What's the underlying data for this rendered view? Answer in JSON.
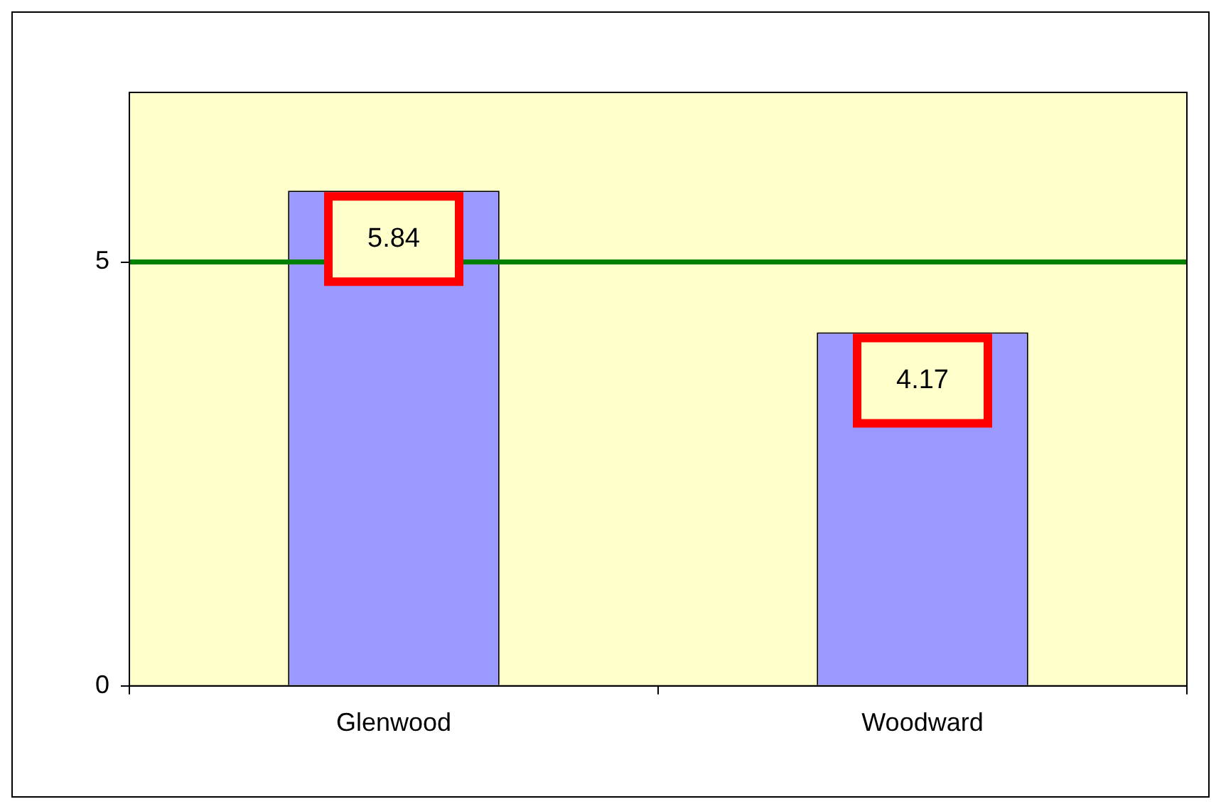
{
  "chart_data": {
    "type": "bar",
    "categories": [
      "Glenwood",
      "Woodward"
    ],
    "values": [
      5.84,
      4.17
    ],
    "color": "#9999ff",
    "ylim": [
      0,
      7
    ],
    "yticks": [
      0,
      5
    ],
    "data_labels": true,
    "ref_lines": [
      {
        "axis": "y",
        "value": 5,
        "color": "#008000"
      }
    ]
  }
}
